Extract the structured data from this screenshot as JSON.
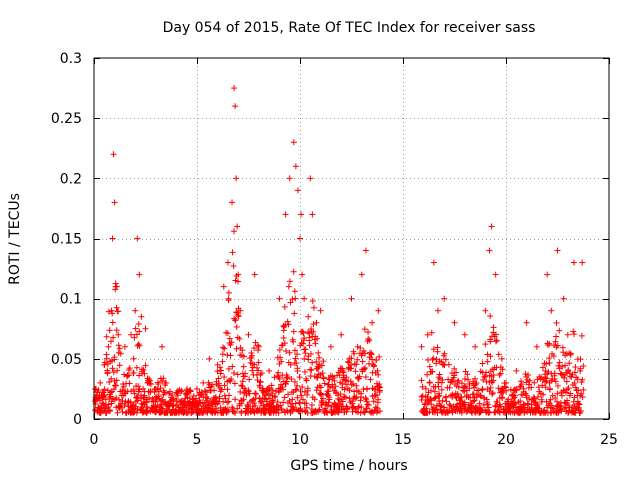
{
  "chart_data": {
    "type": "scatter",
    "title": "Day 054 of 2015, Rate Of TEC Index for receiver sass",
    "xlabel": "GPS time / hours",
    "ylabel": "ROTI / TECUs",
    "xlim": [
      0,
      25
    ],
    "ylim": [
      0,
      0.3
    ],
    "xticks": [
      0,
      5,
      10,
      15,
      20,
      25
    ],
    "yticks": [
      0,
      0.05,
      0.1,
      0.15,
      0.2,
      0.25,
      0.3
    ],
    "xtick_labels": [
      "0",
      "5",
      "10",
      "15",
      "20",
      "25"
    ],
    "ytick_labels": [
      "0",
      "0.05",
      "0.1",
      "0.15",
      "0.2",
      "0.25",
      "0.3"
    ],
    "grid": true,
    "marker": "+",
    "color": "#ff0000",
    "data_gaps_hours": [
      [
        13.9,
        15.9
      ]
    ],
    "series": [
      {
        "name": "ROTI",
        "x": [
          0.1,
          0.3,
          0.5,
          0.7,
          0.85,
          0.9,
          0.95,
          1.0,
          1.05,
          1.2,
          1.5,
          1.8,
          2.0,
          2.1,
          2.2,
          2.3,
          2.5,
          2.6,
          3.0,
          3.3,
          3.5,
          3.8,
          4.0,
          4.5,
          5.0,
          5.3,
          5.6,
          6.0,
          6.3,
          6.5,
          6.7,
          6.8,
          6.85,
          6.9,
          6.95,
          7.0,
          7.1,
          7.5,
          7.8,
          8.0,
          8.5,
          9.0,
          9.3,
          9.5,
          9.7,
          9.8,
          9.9,
          10.0,
          10.05,
          10.1,
          10.2,
          10.5,
          10.6,
          10.8,
          11.0,
          11.5,
          12.0,
          12.5,
          12.8,
          13.0,
          13.2,
          13.5,
          13.8,
          15.9,
          16.2,
          16.5,
          16.7,
          17.0,
          17.5,
          18.0,
          18.5,
          19.0,
          19.2,
          19.3,
          19.5,
          19.8,
          20.0,
          20.5,
          21.0,
          21.5,
          22.0,
          22.2,
          22.5,
          22.8,
          23.0,
          23.3,
          23.6,
          23.7
        ],
        "y": [
          0.025,
          0.03,
          0.045,
          0.06,
          0.09,
          0.15,
          0.22,
          0.18,
          0.11,
          0.055,
          0.06,
          0.07,
          0.09,
          0.15,
          0.12,
          0.085,
          0.075,
          0.03,
          0.025,
          0.06,
          0.03,
          0.02,
          0.015,
          0.02,
          0.025,
          0.03,
          0.05,
          0.045,
          0.11,
          0.13,
          0.18,
          0.275,
          0.26,
          0.2,
          0.16,
          0.12,
          0.09,
          0.07,
          0.12,
          0.06,
          0.04,
          0.1,
          0.17,
          0.2,
          0.23,
          0.21,
          0.19,
          0.15,
          0.17,
          0.12,
          0.1,
          0.2,
          0.17,
          0.08,
          0.09,
          0.06,
          0.07,
          0.1,
          0.06,
          0.12,
          0.14,
          0.08,
          0.09,
          0.06,
          0.07,
          0.13,
          0.09,
          0.1,
          0.08,
          0.07,
          0.06,
          0.09,
          0.14,
          0.16,
          0.12,
          0.05,
          0.03,
          0.04,
          0.08,
          0.06,
          0.12,
          0.09,
          0.14,
          0.1,
          0.07,
          0.13,
          0.04,
          0.13
        ]
      }
    ]
  }
}
